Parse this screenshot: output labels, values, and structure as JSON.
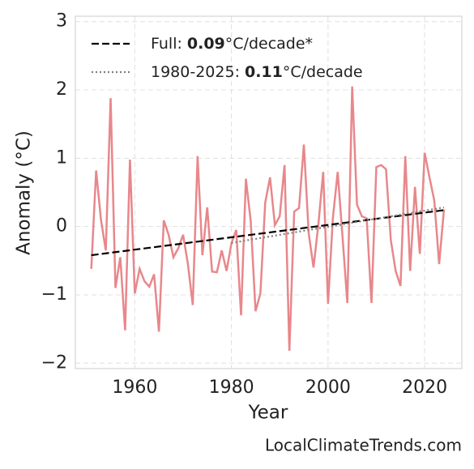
{
  "chart_data": {
    "type": "line",
    "xlabel": "Year",
    "ylabel": "Anomaly (°C)",
    "footer": "LocalClimateTrends.com",
    "xlim": [
      1947.7,
      2027.7
    ],
    "xticks": [
      1960,
      1980,
      2000,
      2020
    ],
    "ylim": [
      -2.08,
      3.08
    ],
    "yticks": [
      {
        "value": -2,
        "label": "−2"
      },
      {
        "value": -1,
        "label": "−1"
      },
      0,
      1,
      2,
      3
    ],
    "grid": true,
    "legend": "upper left",
    "series": [
      {
        "color": "#e8878b",
        "style": "solid",
        "x": [
          1951,
          1952,
          1953,
          1954,
          1955,
          1956,
          1957,
          1958,
          1959,
          1960,
          1961,
          1962,
          1963,
          1964,
          1965,
          1966,
          1967,
          1968,
          1969,
          1970,
          1971,
          1972,
          1973,
          1974,
          1975,
          1976,
          1977,
          1978,
          1979,
          1980,
          1981,
          1982,
          1983,
          1984,
          1985,
          1986,
          1987,
          1988,
          1989,
          1990,
          1991,
          1992,
          1993,
          1994,
          1995,
          1996,
          1997,
          1998,
          1999,
          2000,
          2001,
          2002,
          2003,
          2004,
          2005,
          2006,
          2007,
          2008,
          2009,
          2010,
          2011,
          2012,
          2013,
          2014,
          2015,
          2016,
          2017,
          2018,
          2019,
          2020,
          2021,
          2022,
          2023,
          2024
        ],
        "values": [
          -0.62,
          0.82,
          0.1,
          -0.35,
          1.88,
          -0.9,
          -0.45,
          -1.52,
          0.98,
          -0.98,
          -0.62,
          -0.8,
          -0.88,
          -0.7,
          -1.54,
          0.09,
          -0.12,
          -0.45,
          -0.32,
          -0.12,
          -0.55,
          -1.15,
          1.03,
          -0.42,
          0.28,
          -0.66,
          -0.67,
          -0.35,
          -0.65,
          -0.25,
          -0.05,
          -1.3,
          0.7,
          0.08,
          -1.24,
          -0.98,
          0.35,
          0.72,
          0.02,
          0.15,
          0.9,
          -1.82,
          0.22,
          0.27,
          1.2,
          -0.1,
          -0.6,
          0.03,
          0.8,
          -1.13,
          0.12,
          0.8,
          -0.15,
          -1.12,
          2.05,
          0.32,
          0.15,
          0.12,
          -1.12,
          0.87,
          0.9,
          0.84,
          -0.2,
          -0.65,
          -0.87,
          1.03,
          -0.65,
          0.58,
          -0.4,
          1.08,
          0.72,
          0.38,
          -0.55,
          0.25
        ]
      },
      {
        "name": [
          "Full:",
          "0.09",
          "°C/decade*"
        ],
        "color": "#000000",
        "style": "dashed",
        "x": [
          1951,
          2024
        ],
        "values": [
          -0.42,
          0.24
        ]
      },
      {
        "name": [
          "1980-2025:",
          "0.11",
          "°C/decade"
        ],
        "color": "#808080",
        "style": "dotted",
        "x": [
          1980,
          2024
        ],
        "values": [
          -0.24,
          0.28
        ]
      }
    ]
  }
}
